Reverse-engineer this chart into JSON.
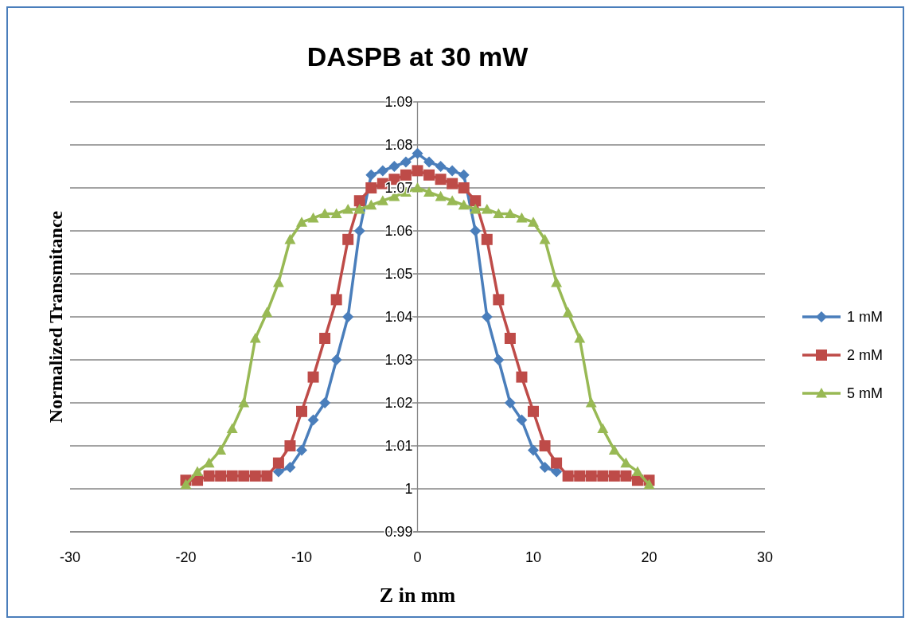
{
  "chart_data": {
    "type": "line",
    "title": "DASPB at 30 mW",
    "xlabel": "Z in mm",
    "ylabel": "Normalized Transmitance",
    "xlim": [
      -30,
      30
    ],
    "xticks": [
      -30,
      -20,
      -10,
      0,
      10,
      20,
      30
    ],
    "ylim": [
      0.99,
      1.09
    ],
    "yticks": [
      0.99,
      1,
      1.01,
      1.02,
      1.03,
      1.04,
      1.05,
      1.06,
      1.07,
      1.08,
      1.09
    ],
    "grid": "y",
    "legend": "right",
    "series": [
      {
        "name": "1 mM",
        "color": "#4a7ebb",
        "marker": "diamond",
        "x": [
          -12,
          -11,
          -10,
          -9,
          -8,
          -7,
          -6,
          -5,
          -4,
          -3,
          -2,
          -1,
          0,
          1,
          2,
          3,
          4,
          5,
          6,
          7,
          8,
          9,
          10,
          11,
          12
        ],
        "values": [
          1.004,
          1.005,
          1.009,
          1.016,
          1.02,
          1.03,
          1.04,
          1.06,
          1.073,
          1.074,
          1.075,
          1.076,
          1.078,
          1.076,
          1.075,
          1.074,
          1.073,
          1.06,
          1.04,
          1.03,
          1.02,
          1.016,
          1.009,
          1.005,
          1.004
        ]
      },
      {
        "name": "2 mM",
        "color": "#be4b48",
        "marker": "square",
        "x": [
          -20,
          -19,
          -18,
          -17,
          -16,
          -15,
          -14,
          -13,
          -12,
          -11,
          -10,
          -9,
          -8,
          -7,
          -6,
          -5,
          -4,
          -3,
          -2,
          -1,
          0,
          1,
          2,
          3,
          4,
          5,
          6,
          7,
          8,
          9,
          10,
          11,
          12,
          13,
          14,
          15,
          16,
          17,
          18,
          19,
          20
        ],
        "values": [
          1.002,
          1.002,
          1.003,
          1.003,
          1.003,
          1.003,
          1.003,
          1.003,
          1.006,
          1.01,
          1.018,
          1.026,
          1.035,
          1.044,
          1.058,
          1.067,
          1.07,
          1.071,
          1.072,
          1.073,
          1.074,
          1.073,
          1.072,
          1.071,
          1.07,
          1.067,
          1.058,
          1.044,
          1.035,
          1.026,
          1.018,
          1.01,
          1.006,
          1.003,
          1.003,
          1.003,
          1.003,
          1.003,
          1.003,
          1.002,
          1.002
        ]
      },
      {
        "name": "5 mM",
        "color": "#98b954",
        "marker": "triangle",
        "x": [
          -20,
          -19,
          -18,
          -17,
          -16,
          -15,
          -14,
          -13,
          -12,
          -11,
          -10,
          -9,
          -8,
          -7,
          -6,
          -5,
          -4,
          -3,
          -2,
          -1,
          0,
          1,
          2,
          3,
          4,
          5,
          6,
          7,
          8,
          9,
          10,
          11,
          12,
          13,
          14,
          15,
          16,
          17,
          18,
          19,
          20
        ],
        "values": [
          1.001,
          1.004,
          1.006,
          1.009,
          1.014,
          1.02,
          1.035,
          1.041,
          1.048,
          1.058,
          1.062,
          1.063,
          1.064,
          1.064,
          1.065,
          1.065,
          1.066,
          1.067,
          1.068,
          1.069,
          1.07,
          1.069,
          1.068,
          1.067,
          1.066,
          1.065,
          1.065,
          1.064,
          1.064,
          1.063,
          1.062,
          1.058,
          1.048,
          1.041,
          1.035,
          1.02,
          1.014,
          1.009,
          1.006,
          1.004,
          1.001
        ]
      }
    ]
  }
}
